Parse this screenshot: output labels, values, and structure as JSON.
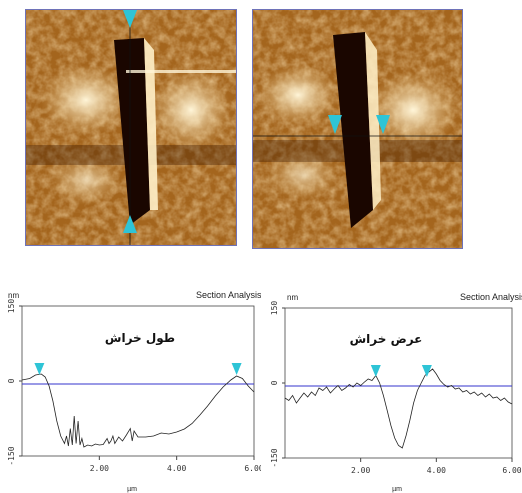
{
  "colors": {
    "dark": "#3a1600",
    "mid": "#a4651d",
    "light": "#f2d49a",
    "frame": "#6e72b8",
    "baseline": "#3333cc",
    "marker": "#2ec4d6"
  },
  "images": [
    {
      "name": "afm-image-left"
    },
    {
      "name": "afm-image-right"
    }
  ],
  "chart_data": [
    {
      "type": "line",
      "title": "Section Analysis",
      "annotation": "طول خراش",
      "y_unit": "nm",
      "x_unit": "µm",
      "xlim": [
        0,
        6
      ],
      "ylim": [
        -150,
        150
      ],
      "x_ticks": [
        "2.00",
        "4.00",
        "6.00"
      ],
      "y_ticks": [
        "150",
        "0",
        "-150"
      ],
      "markers": [
        {
          "x": 0.45,
          "y": 12
        },
        {
          "x": 5.55,
          "y": 12
        }
      ],
      "series": [
        {
          "points": [
            [
              0,
              2
            ],
            [
              0.2,
              5
            ],
            [
              0.35,
              12
            ],
            [
              0.5,
              14
            ],
            [
              0.6,
              8
            ],
            [
              0.7,
              -10
            ],
            [
              0.8,
              -40
            ],
            [
              0.9,
              -80
            ],
            [
              1.0,
              -110
            ],
            [
              1.1,
              -125
            ],
            [
              1.15,
              -110
            ],
            [
              1.2,
              -130
            ],
            [
              1.25,
              -95
            ],
            [
              1.3,
              -128
            ],
            [
              1.35,
              -70
            ],
            [
              1.4,
              -125
            ],
            [
              1.45,
              -80
            ],
            [
              1.5,
              -128
            ],
            [
              1.55,
              -115
            ],
            [
              1.6,
              -132
            ],
            [
              1.7,
              -128
            ],
            [
              1.8,
              -130
            ],
            [
              1.9,
              -126
            ],
            [
              2.0,
              -128
            ],
            [
              2.1,
              -127
            ],
            [
              2.2,
              -115
            ],
            [
              2.25,
              -125
            ],
            [
              2.3,
              -120
            ],
            [
              2.35,
              -110
            ],
            [
              2.4,
              -125
            ],
            [
              2.5,
              -112
            ],
            [
              2.6,
              -120
            ],
            [
              2.7,
              -108
            ],
            [
              2.8,
              -95
            ],
            [
              2.85,
              -120
            ],
            [
              2.9,
              -100
            ],
            [
              3.0,
              -112
            ],
            [
              3.2,
              -112
            ],
            [
              3.4,
              -110
            ],
            [
              3.6,
              -104
            ],
            [
              3.8,
              -106
            ],
            [
              4.0,
              -102
            ],
            [
              4.2,
              -96
            ],
            [
              4.4,
              -85
            ],
            [
              4.6,
              -68
            ],
            [
              4.8,
              -50
            ],
            [
              5.0,
              -30
            ],
            [
              5.2,
              -12
            ],
            [
              5.4,
              2
            ],
            [
              5.55,
              10
            ],
            [
              5.7,
              5
            ],
            [
              5.85,
              -10
            ],
            [
              6.0,
              -22
            ]
          ]
        }
      ]
    },
    {
      "type": "line",
      "title": "Section Analysis",
      "annotation": "عرض خراش",
      "y_unit": "nm",
      "x_unit": "µm",
      "xlim": [
        0,
        6
      ],
      "ylim": [
        -150,
        150
      ],
      "x_ticks": [
        "2.00",
        "4.00",
        "6.00"
      ],
      "y_ticks": [
        "150",
        "0",
        "-150"
      ],
      "markers": [
        {
          "x": 2.4,
          "y": 12
        },
        {
          "x": 3.75,
          "y": 12
        }
      ],
      "series": [
        {
          "points": [
            [
              0,
              -30
            ],
            [
              0.1,
              -35
            ],
            [
              0.2,
              -25
            ],
            [
              0.3,
              -40
            ],
            [
              0.4,
              -30
            ],
            [
              0.5,
              -20
            ],
            [
              0.6,
              -28
            ],
            [
              0.7,
              -18
            ],
            [
              0.8,
              -25
            ],
            [
              0.9,
              -10
            ],
            [
              1.0,
              -15
            ],
            [
              1.1,
              -8
            ],
            [
              1.2,
              -20
            ],
            [
              1.3,
              -12
            ],
            [
              1.4,
              -5
            ],
            [
              1.5,
              -15
            ],
            [
              1.6,
              -10
            ],
            [
              1.7,
              -3
            ],
            [
              1.8,
              -8
            ],
            [
              1.9,
              0
            ],
            [
              2.0,
              -5
            ],
            [
              2.1,
              2
            ],
            [
              2.2,
              8
            ],
            [
              2.3,
              5
            ],
            [
              2.4,
              15
            ],
            [
              2.5,
              0
            ],
            [
              2.6,
              -25
            ],
            [
              2.7,
              -55
            ],
            [
              2.8,
              -85
            ],
            [
              2.9,
              -110
            ],
            [
              3.0,
              -125
            ],
            [
              3.1,
              -130
            ],
            [
              3.2,
              -105
            ],
            [
              3.3,
              -75
            ],
            [
              3.4,
              -40
            ],
            [
              3.5,
              -15
            ],
            [
              3.6,
              0
            ],
            [
              3.7,
              15
            ],
            [
              3.8,
              22
            ],
            [
              3.9,
              28
            ],
            [
              4.0,
              18
            ],
            [
              4.1,
              5
            ],
            [
              4.2,
              -3
            ],
            [
              4.3,
              -8
            ],
            [
              4.4,
              -5
            ],
            [
              4.5,
              -12
            ],
            [
              4.6,
              -10
            ],
            [
              4.7,
              -18
            ],
            [
              4.8,
              -15
            ],
            [
              4.9,
              -22
            ],
            [
              5.0,
              -18
            ],
            [
              5.1,
              -25
            ],
            [
              5.2,
              -20
            ],
            [
              5.3,
              -28
            ],
            [
              5.4,
              -22
            ],
            [
              5.5,
              -30
            ],
            [
              5.6,
              -28
            ],
            [
              5.7,
              -35
            ],
            [
              5.8,
              -30
            ],
            [
              5.9,
              -38
            ],
            [
              6.0,
              -42
            ]
          ]
        }
      ]
    }
  ]
}
